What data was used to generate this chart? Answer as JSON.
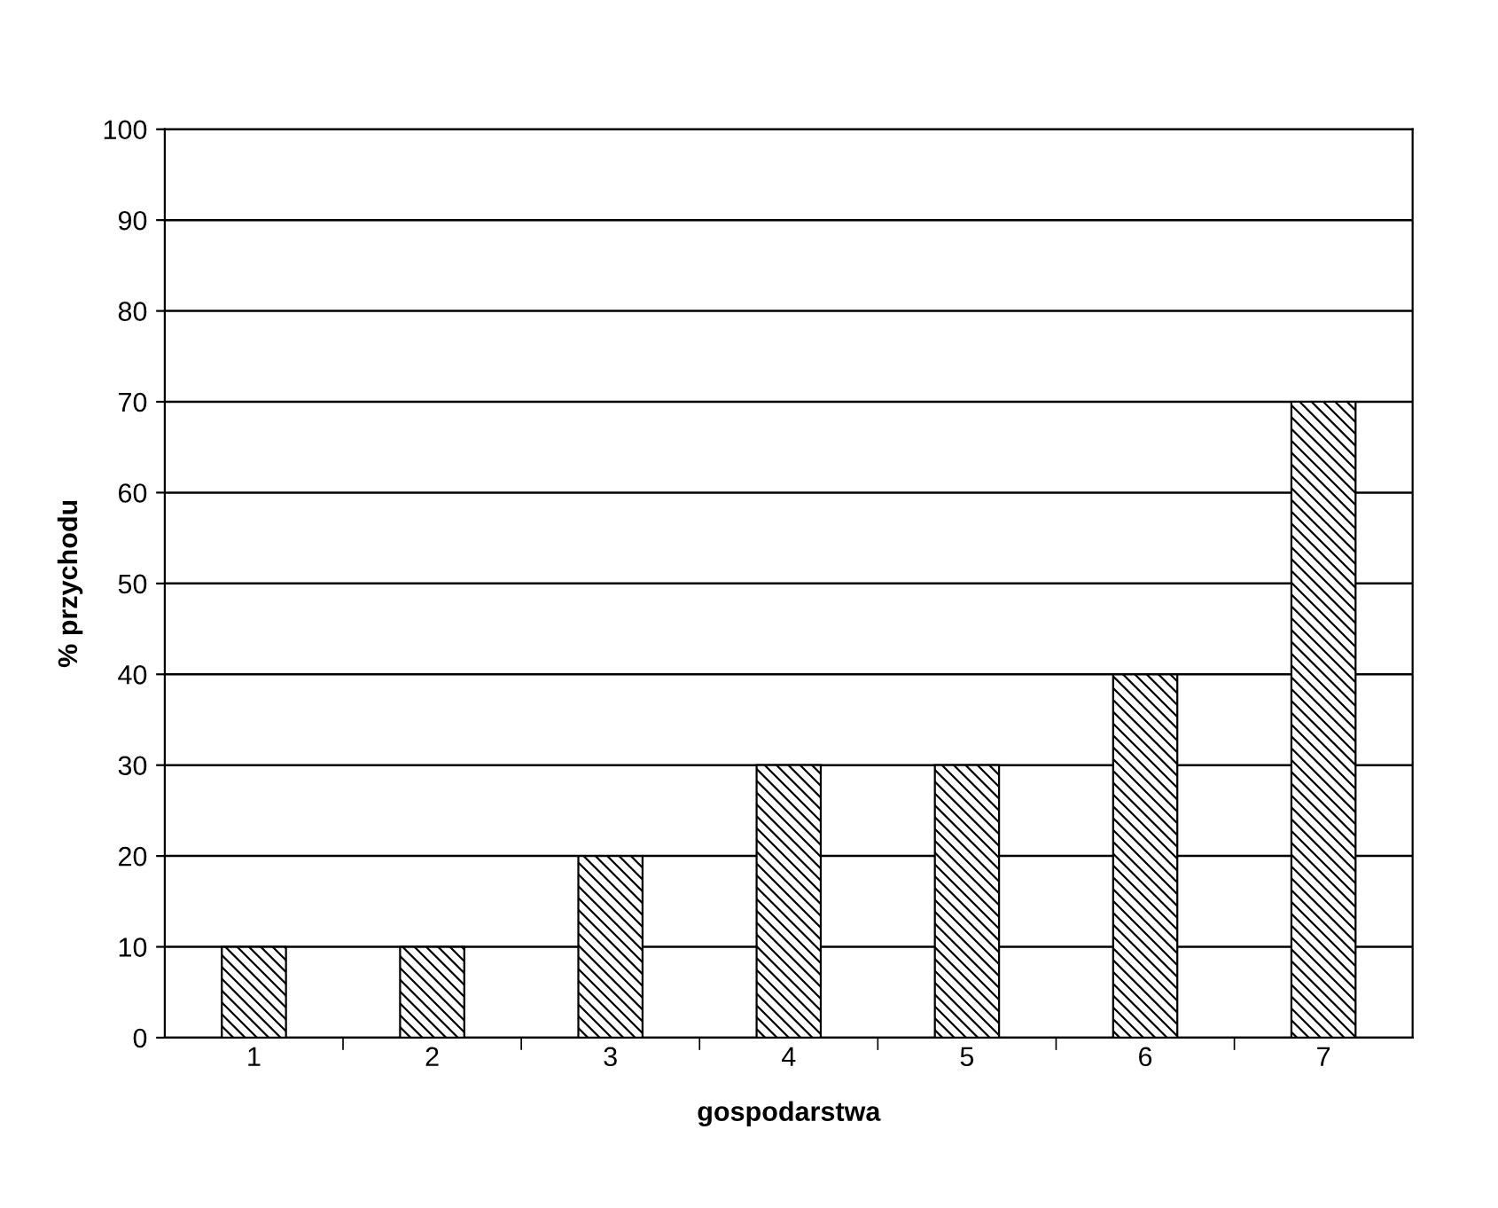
{
  "chart_data": {
    "type": "bar",
    "xlabel": "gospodarstwa",
    "ylabel": "% przychodu",
    "categories": [
      "1",
      "2",
      "3",
      "4",
      "5",
      "6",
      "7"
    ],
    "values": [
      10,
      10,
      20,
      30,
      30,
      40,
      70
    ],
    "color": "#000000",
    "ylim": [
      0,
      100
    ],
    "yticks": [
      0,
      10,
      20,
      30,
      40,
      50,
      60,
      70,
      80,
      90,
      100
    ],
    "grid": "y"
  }
}
